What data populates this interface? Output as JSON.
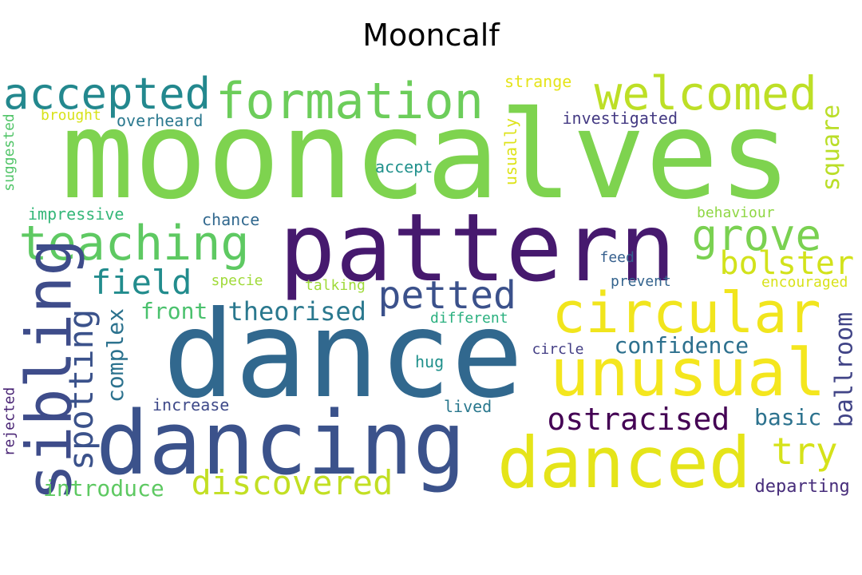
{
  "title": "Mooncalf",
  "words": [
    {
      "text": "mooncalves",
      "color": "#7ed34f"
    },
    {
      "text": "pattern",
      "color": "#46196e"
    },
    {
      "text": "dance",
      "color": "#31688e"
    },
    {
      "text": "dancing",
      "color": "#3b528b"
    },
    {
      "text": "danced",
      "color": "#e5e419"
    },
    {
      "text": "unusual",
      "color": "#f4e61e"
    },
    {
      "text": "circular",
      "color": "#f1e51d"
    },
    {
      "text": "formation",
      "color": "#6ccd5a"
    },
    {
      "text": "welcomed",
      "color": "#bddf26"
    },
    {
      "text": "accepted",
      "color": "#23888e"
    },
    {
      "text": "teaching",
      "color": "#5ec962"
    },
    {
      "text": "grove",
      "color": "#7ad151"
    },
    {
      "text": "sibling",
      "color": "#3e4c8a"
    },
    {
      "text": "petted",
      "color": "#3b518b"
    },
    {
      "text": "discovered",
      "color": "#c2df23"
    },
    {
      "text": "field",
      "color": "#228c8d"
    },
    {
      "text": "bolster",
      "color": "#d2e21b"
    },
    {
      "text": "try",
      "color": "#d5e21a"
    },
    {
      "text": "ostracised",
      "color": "#440154"
    },
    {
      "text": "theorised",
      "color": "#2a788e"
    },
    {
      "text": "front",
      "color": "#4ac16d"
    },
    {
      "text": "spotting",
      "color": "#3b528b"
    },
    {
      "text": "complex",
      "color": "#2c728e"
    },
    {
      "text": "confidence",
      "color": "#2d708e"
    },
    {
      "text": "basic",
      "color": "#2c728e"
    },
    {
      "text": "ballroom",
      "color": "#414487"
    },
    {
      "text": "square",
      "color": "#bade28"
    },
    {
      "text": "introduce",
      "color": "#5ec962"
    },
    {
      "text": "departing",
      "color": "#472d7b"
    },
    {
      "text": "encouraged",
      "color": "#d8e219"
    },
    {
      "text": "behaviour",
      "color": "#8fd744"
    },
    {
      "text": "impressive",
      "color": "#35b779"
    },
    {
      "text": "investigated",
      "color": "#443a83"
    },
    {
      "text": "overheard",
      "color": "#2a788e"
    },
    {
      "text": "brought",
      "color": "#d8e219"
    },
    {
      "text": "strange",
      "color": "#e5e419"
    },
    {
      "text": "accept",
      "color": "#21918c"
    },
    {
      "text": "usually",
      "color": "#dde318"
    },
    {
      "text": "chance",
      "color": "#31688e"
    },
    {
      "text": "feed",
      "color": "#355f8d"
    },
    {
      "text": "prevent",
      "color": "#33638d"
    },
    {
      "text": "specie",
      "color": "#a0da39"
    },
    {
      "text": "talking",
      "color": "#9fda3a"
    },
    {
      "text": "different",
      "color": "#2ab07f"
    },
    {
      "text": "hug",
      "color": "#21918c"
    },
    {
      "text": "circle",
      "color": "#433e85"
    },
    {
      "text": "increase",
      "color": "#3e4989"
    },
    {
      "text": "lived",
      "color": "#2a788e"
    },
    {
      "text": "suggested",
      "color": "#52c569"
    },
    {
      "text": "rejected",
      "color": "#482374"
    }
  ]
}
